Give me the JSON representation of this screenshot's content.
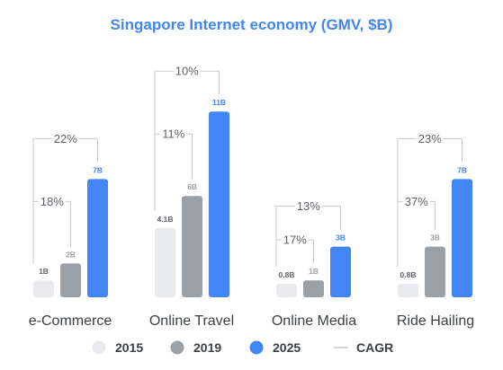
{
  "chart_data": {
    "type": "bar",
    "title": "Singapore Internet economy (GMV, $B)",
    "categories": [
      "e-Commerce",
      "Online Travel",
      "Online Media",
      "Ride Hailing"
    ],
    "series": [
      {
        "name": "2015",
        "values": [
          1,
          4.1,
          0.8,
          0.8
        ],
        "labels": [
          "1B",
          "4.1B",
          "0.8B",
          "0.8B"
        ]
      },
      {
        "name": "2019",
        "values": [
          2,
          6,
          1,
          3
        ],
        "labels": [
          "2B",
          "6B",
          "1B",
          "3B"
        ]
      },
      {
        "name": "2025",
        "values": [
          7,
          11,
          3,
          7
        ],
        "labels": [
          "7B",
          "11B",
          "3B",
          "7B"
        ]
      }
    ],
    "cagr": {
      "name": "CAGR",
      "long": [
        "22%",
        "10%",
        "13%",
        "23%"
      ],
      "short": [
        "18%",
        "11%",
        "17%",
        "37%"
      ]
    },
    "colors": {
      "2015": "#e8eaed",
      "2019": "#9aa0a6",
      "2025": "#4285f4",
      "title": "#4285f4",
      "cagr_line": "#c8cacd"
    },
    "xlabel": "",
    "ylabel": "",
    "legend_position": "bottom"
  }
}
